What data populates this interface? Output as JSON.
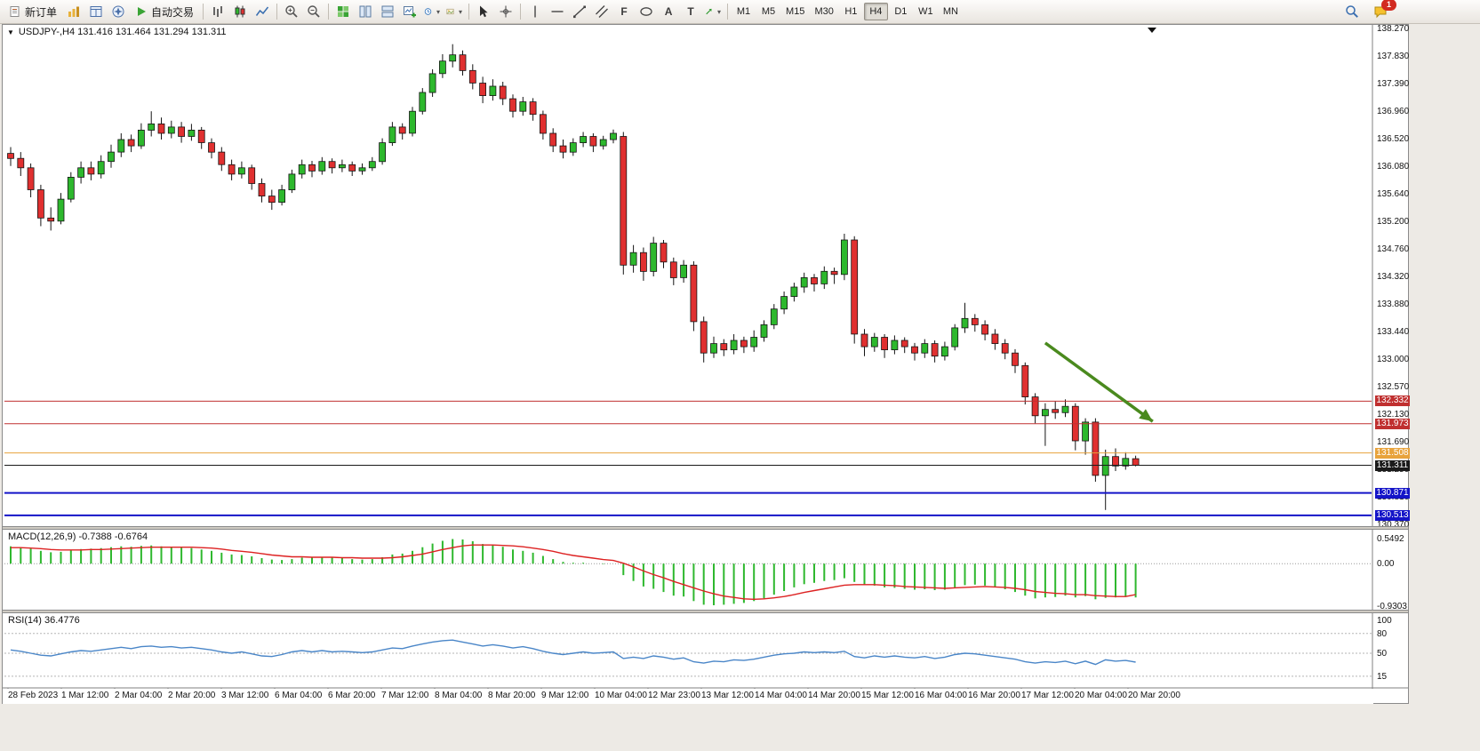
{
  "toolbar": {
    "new_order_label": "新订单",
    "auto_trading_label": "自动交易",
    "timeframes": [
      "M1",
      "M5",
      "M15",
      "M30",
      "H1",
      "H4",
      "D1",
      "W1",
      "MN"
    ],
    "active_timeframe": "H4",
    "notification_count": "1",
    "icons": [
      "market-watch-icon",
      "data-window-icon",
      "navigator-icon",
      "auto-trading-icon",
      "bar-chart-icon",
      "candlestick-chart-icon",
      "line-chart-icon",
      "zoom-in-icon",
      "zoom-out-icon",
      "tile-windows-icon",
      "arrange-columns-icon",
      "arrange-rows-icon",
      "new-chart-icon",
      "period-clock-icon",
      "template-icon",
      "cursor-icon",
      "crosshair-icon",
      "vertical-line-icon",
      "horizontal-line-icon",
      "trendline-icon",
      "channel-icon",
      "fibonacci-icon",
      "shapes-icon",
      "text-icon",
      "label-icon",
      "arrows-tool-icon",
      "search-icon",
      "notifications-icon"
    ]
  },
  "chart_data": {
    "type": "candlestick",
    "symbol": "USDJPY-",
    "timeframe": "H4",
    "symbol_header": "USDJPY-,H4 131.416 131.464 131.294 131.311",
    "ohlc_current": {
      "open": 131.416,
      "high": 131.464,
      "low": 131.294,
      "close": 131.311
    },
    "price_max": 138.27,
    "price_min": 130.37,
    "price_axis_labels": [
      "138.270",
      "137.830",
      "137.390",
      "136.960",
      "136.520",
      "136.080",
      "135.640",
      "135.200",
      "134.760",
      "134.320",
      "133.880",
      "133.440",
      "133.000",
      "132.570",
      "132.130",
      "131.690",
      "131.250",
      "130.810",
      "130.370"
    ],
    "levels": [
      {
        "price": 132.332,
        "label": "132.332",
        "color": "#c03030",
        "width": 1
      },
      {
        "price": 131.973,
        "label": "131.973",
        "color": "#c03030",
        "width": 1
      },
      {
        "price": 131.508,
        "label": "131.508",
        "color": "#e8a33c",
        "width": 1
      },
      {
        "price": 131.311,
        "label": "131.311",
        "color": "#1a1a1a",
        "width": 1
      },
      {
        "price": 130.871,
        "label": "130.871",
        "color": "#1414c8",
        "width": 2
      },
      {
        "price": 130.513,
        "label": "130.513",
        "color": "#1414c8",
        "width": 2
      }
    ],
    "annotation_arrow": {
      "from_index": 103,
      "from_price": 133.26,
      "to_index": 113.7,
      "to_price": 132.01,
      "color": "#4a8a1e"
    },
    "colors": {
      "up": "#2db82d",
      "down": "#e03030",
      "outline": "#141414",
      "macd_histogram": "#2eb82e",
      "macd_signal": "#dd2222",
      "rsi_line": "#4a86c8"
    },
    "candles": [
      [
        136.28,
        136.38,
        136.08,
        136.2
      ],
      [
        136.2,
        136.3,
        135.92,
        136.05
      ],
      [
        136.05,
        136.12,
        135.58,
        135.7
      ],
      [
        135.7,
        135.78,
        135.12,
        135.25
      ],
      [
        135.25,
        135.42,
        135.05,
        135.2
      ],
      [
        135.2,
        135.65,
        135.15,
        135.55
      ],
      [
        135.55,
        135.98,
        135.5,
        135.9
      ],
      [
        135.9,
        136.15,
        135.8,
        136.05
      ],
      [
        136.05,
        136.15,
        135.85,
        135.95
      ],
      [
        135.95,
        136.25,
        135.88,
        136.15
      ],
      [
        136.15,
        136.42,
        136.05,
        136.3
      ],
      [
        136.3,
        136.6,
        136.22,
        136.5
      ],
      [
        136.5,
        136.58,
        136.3,
        136.4
      ],
      [
        136.4,
        136.76,
        136.35,
        136.65
      ],
      [
        136.65,
        136.95,
        136.55,
        136.75
      ],
      [
        136.75,
        136.85,
        136.5,
        136.6
      ],
      [
        136.6,
        136.8,
        136.52,
        136.7
      ],
      [
        136.7,
        136.78,
        136.45,
        136.55
      ],
      [
        136.55,
        136.75,
        136.48,
        136.65
      ],
      [
        136.65,
        136.7,
        136.35,
        136.45
      ],
      [
        136.45,
        136.52,
        136.2,
        136.3
      ],
      [
        136.3,
        136.38,
        136.0,
        136.1
      ],
      [
        136.1,
        136.18,
        135.85,
        135.95
      ],
      [
        135.95,
        136.15,
        135.88,
        136.05
      ],
      [
        136.05,
        136.1,
        135.7,
        135.8
      ],
      [
        135.8,
        135.88,
        135.5,
        135.6
      ],
      [
        135.6,
        135.7,
        135.38,
        135.5
      ],
      [
        135.5,
        135.78,
        135.45,
        135.7
      ],
      [
        135.7,
        136.02,
        135.65,
        135.95
      ],
      [
        135.95,
        136.18,
        135.88,
        136.1
      ],
      [
        136.1,
        136.16,
        135.9,
        136.0
      ],
      [
        136.0,
        136.22,
        135.94,
        136.15
      ],
      [
        136.15,
        136.2,
        135.96,
        136.05
      ],
      [
        136.05,
        136.18,
        135.98,
        136.1
      ],
      [
        136.1,
        136.15,
        135.92,
        136.0
      ],
      [
        136.0,
        136.12,
        135.94,
        136.05
      ],
      [
        136.05,
        136.22,
        136.0,
        136.15
      ],
      [
        136.15,
        136.52,
        136.1,
        136.45
      ],
      [
        136.45,
        136.78,
        136.4,
        136.7
      ],
      [
        136.7,
        136.76,
        136.5,
        136.6
      ],
      [
        136.6,
        137.02,
        136.55,
        136.95
      ],
      [
        136.95,
        137.32,
        136.9,
        137.25
      ],
      [
        137.25,
        137.62,
        137.18,
        137.55
      ],
      [
        137.55,
        137.86,
        137.48,
        137.75
      ],
      [
        137.75,
        138.02,
        137.65,
        137.85
      ],
      [
        137.85,
        137.92,
        137.52,
        137.6
      ],
      [
        137.6,
        137.7,
        137.3,
        137.4
      ],
      [
        137.4,
        137.5,
        137.08,
        137.2
      ],
      [
        137.2,
        137.46,
        137.12,
        137.35
      ],
      [
        137.35,
        137.42,
        137.05,
        137.15
      ],
      [
        137.15,
        137.22,
        136.85,
        136.95
      ],
      [
        136.95,
        137.18,
        136.88,
        137.1
      ],
      [
        137.1,
        137.16,
        136.8,
        136.9
      ],
      [
        136.9,
        136.96,
        136.5,
        136.6
      ],
      [
        136.6,
        136.68,
        136.3,
        136.4
      ],
      [
        136.4,
        136.5,
        136.2,
        136.3
      ],
      [
        136.3,
        136.52,
        136.24,
        136.45
      ],
      [
        136.45,
        136.62,
        136.38,
        136.55
      ],
      [
        136.55,
        136.6,
        136.3,
        136.4
      ],
      [
        136.4,
        136.56,
        136.34,
        136.5
      ],
      [
        136.5,
        136.66,
        136.44,
        136.6
      ],
      [
        136.55,
        136.62,
        134.35,
        134.5
      ],
      [
        134.5,
        134.82,
        134.38,
        134.7
      ],
      [
        134.7,
        134.78,
        134.25,
        134.4
      ],
      [
        134.4,
        134.95,
        134.32,
        134.85
      ],
      [
        134.85,
        134.9,
        134.45,
        134.55
      ],
      [
        134.55,
        134.62,
        134.18,
        134.3
      ],
      [
        134.3,
        134.58,
        134.22,
        134.5
      ],
      [
        134.5,
        134.56,
        133.45,
        133.6
      ],
      [
        133.6,
        133.68,
        132.95,
        133.1
      ],
      [
        133.1,
        133.36,
        133.02,
        133.25
      ],
      [
        133.25,
        133.32,
        133.05,
        133.15
      ],
      [
        133.15,
        133.4,
        133.08,
        133.3
      ],
      [
        133.3,
        133.36,
        133.1,
        133.2
      ],
      [
        133.2,
        133.46,
        133.12,
        133.35
      ],
      [
        133.35,
        133.62,
        133.28,
        133.55
      ],
      [
        133.55,
        133.88,
        133.48,
        133.8
      ],
      [
        133.8,
        134.08,
        133.72,
        134.0
      ],
      [
        134.0,
        134.22,
        133.92,
        134.15
      ],
      [
        134.15,
        134.38,
        134.06,
        134.3
      ],
      [
        134.3,
        134.36,
        134.08,
        134.2
      ],
      [
        134.2,
        134.48,
        134.12,
        134.4
      ],
      [
        134.4,
        134.46,
        134.2,
        134.35
      ],
      [
        134.35,
        135.0,
        134.26,
        134.9
      ],
      [
        134.9,
        134.96,
        133.25,
        133.4
      ],
      [
        133.4,
        133.48,
        133.05,
        133.2
      ],
      [
        133.2,
        133.42,
        133.12,
        133.35
      ],
      [
        133.35,
        133.4,
        133.02,
        133.15
      ],
      [
        133.15,
        133.38,
        133.08,
        133.3
      ],
      [
        133.3,
        133.35,
        133.1,
        133.2
      ],
      [
        133.2,
        133.26,
        132.98,
        133.1
      ],
      [
        133.1,
        133.32,
        133.02,
        133.25
      ],
      [
        133.25,
        133.3,
        132.95,
        133.05
      ],
      [
        133.05,
        133.28,
        132.98,
        133.2
      ],
      [
        133.2,
        133.56,
        133.14,
        133.5
      ],
      [
        133.5,
        133.9,
        133.42,
        133.65
      ],
      [
        133.65,
        133.72,
        133.44,
        133.55
      ],
      [
        133.55,
        133.62,
        133.3,
        133.4
      ],
      [
        133.4,
        133.48,
        133.15,
        133.25
      ],
      [
        133.25,
        133.32,
        133.0,
        133.1
      ],
      [
        133.1,
        133.16,
        132.78,
        132.9
      ],
      [
        132.9,
        132.95,
        132.28,
        132.4
      ],
      [
        132.4,
        132.46,
        131.98,
        132.1
      ],
      [
        132.1,
        132.3,
        131.62,
        132.2
      ],
      [
        132.2,
        132.33,
        132.05,
        132.15
      ],
      [
        132.15,
        132.36,
        132.08,
        132.25
      ],
      [
        132.25,
        132.3,
        131.55,
        131.7
      ],
      [
        131.7,
        132.06,
        131.48,
        132.0
      ],
      [
        132.0,
        132.06,
        131.05,
        131.15
      ],
      [
        131.15,
        131.56,
        130.6,
        131.45
      ],
      [
        131.45,
        131.58,
        131.22,
        131.3
      ],
      [
        131.3,
        131.52,
        131.24,
        131.42
      ],
      [
        131.416,
        131.464,
        131.294,
        131.311
      ]
    ],
    "macd": {
      "label": "MACD(12,26,9) -0.7388 -0.6764",
      "name": "MACD",
      "params": "12,26,9",
      "value": -0.7388,
      "signal_value": -0.6764,
      "axis_labels": [
        "0.5492",
        "0.00",
        "-0.9303"
      ],
      "scale_max": 0.5492,
      "scale_min": -0.9303,
      "histogram": [
        0.38,
        0.36,
        0.33,
        0.28,
        0.25,
        0.26,
        0.29,
        0.32,
        0.33,
        0.34,
        0.36,
        0.38,
        0.37,
        0.39,
        0.4,
        0.38,
        0.37,
        0.35,
        0.34,
        0.31,
        0.28,
        0.24,
        0.2,
        0.19,
        0.16,
        0.12,
        0.09,
        0.08,
        0.1,
        0.13,
        0.13,
        0.14,
        0.13,
        0.12,
        0.1,
        0.09,
        0.1,
        0.14,
        0.2,
        0.22,
        0.28,
        0.36,
        0.44,
        0.5,
        0.54,
        0.53,
        0.49,
        0.43,
        0.41,
        0.37,
        0.31,
        0.28,
        0.24,
        0.17,
        0.1,
        0.04,
        0.02,
        0.02,
        0.0,
        -0.01,
        0.0,
        -0.25,
        -0.38,
        -0.5,
        -0.55,
        -0.62,
        -0.7,
        -0.72,
        -0.82,
        -0.9,
        -0.91,
        -0.9,
        -0.88,
        -0.86,
        -0.82,
        -0.76,
        -0.68,
        -0.6,
        -0.52,
        -0.45,
        -0.42,
        -0.38,
        -0.36,
        -0.32,
        -0.4,
        -0.46,
        -0.48,
        -0.52,
        -0.53,
        -0.55,
        -0.57,
        -0.56,
        -0.58,
        -0.57,
        -0.52,
        -0.47,
        -0.46,
        -0.48,
        -0.52,
        -0.56,
        -0.62,
        -0.7,
        -0.76,
        -0.74,
        -0.73,
        -0.7,
        -0.74,
        -0.71,
        -0.78,
        -0.75,
        -0.74,
        -0.73,
        -0.7388
      ],
      "signal": [
        0.35,
        0.35,
        0.34,
        0.33,
        0.31,
        0.3,
        0.3,
        0.3,
        0.31,
        0.31,
        0.32,
        0.33,
        0.34,
        0.35,
        0.36,
        0.36,
        0.36,
        0.36,
        0.36,
        0.35,
        0.34,
        0.32,
        0.29,
        0.27,
        0.25,
        0.22,
        0.19,
        0.17,
        0.15,
        0.15,
        0.14,
        0.14,
        0.14,
        0.13,
        0.13,
        0.12,
        0.12,
        0.12,
        0.13,
        0.15,
        0.18,
        0.21,
        0.26,
        0.31,
        0.35,
        0.39,
        0.41,
        0.41,
        0.41,
        0.4,
        0.39,
        0.37,
        0.34,
        0.31,
        0.27,
        0.22,
        0.18,
        0.15,
        0.12,
        0.09,
        0.07,
        0.01,
        -0.07,
        -0.16,
        -0.24,
        -0.31,
        -0.39,
        -0.46,
        -0.53,
        -0.6,
        -0.66,
        -0.71,
        -0.74,
        -0.77,
        -0.78,
        -0.77,
        -0.75,
        -0.72,
        -0.68,
        -0.63,
        -0.59,
        -0.55,
        -0.51,
        -0.47,
        -0.46,
        -0.46,
        -0.46,
        -0.47,
        -0.48,
        -0.5,
        -0.51,
        -0.52,
        -0.53,
        -0.54,
        -0.53,
        -0.52,
        -0.51,
        -0.5,
        -0.51,
        -0.52,
        -0.54,
        -0.57,
        -0.61,
        -0.63,
        -0.65,
        -0.66,
        -0.68,
        -0.68,
        -0.7,
        -0.71,
        -0.72,
        -0.72,
        -0.6764
      ]
    },
    "rsi": {
      "label": "RSI(14) 36.4776",
      "value": 36.4776,
      "axis_labels": [
        "100",
        "80",
        "50",
        "15"
      ],
      "level_lines": [
        80,
        50,
        15
      ],
      "values": [
        55,
        53,
        50,
        47,
        46,
        49,
        52,
        54,
        53,
        55,
        57,
        59,
        57,
        60,
        61,
        59,
        60,
        58,
        59,
        57,
        55,
        52,
        50,
        52,
        49,
        46,
        45,
        48,
        52,
        54,
        52,
        54,
        52,
        53,
        52,
        51,
        52,
        55,
        58,
        57,
        61,
        64,
        67,
        69,
        70,
        67,
        64,
        61,
        63,
        61,
        58,
        60,
        57,
        53,
        50,
        48,
        50,
        52,
        50,
        51,
        52,
        42,
        44,
        42,
        46,
        44,
        41,
        43,
        37,
        35,
        38,
        37,
        40,
        39,
        41,
        44,
        47,
        49,
        50,
        52,
        51,
        52,
        51,
        53,
        45,
        43,
        46,
        44,
        46,
        44,
        43,
        45,
        42,
        44,
        48,
        50,
        49,
        47,
        45,
        43,
        41,
        37,
        35,
        37,
        36,
        38,
        34,
        38,
        33,
        40,
        38,
        39,
        36.4776
      ]
    },
    "time_axis_labels": [
      "28 Feb 2023",
      "1 Mar 12:00",
      "2 Mar 04:00",
      "2 Mar 20:00",
      "3 Mar 12:00",
      "6 Mar 04:00",
      "6 Mar 20:00",
      "7 Mar 12:00",
      "8 Mar 04:00",
      "8 Mar 20:00",
      "9 Mar 12:00",
      "10 Mar 04:00",
      "12 Mar 23:00",
      "13 Mar 12:00",
      "14 Mar 04:00",
      "14 Mar 20:00",
      "15 Mar 12:00",
      "16 Mar 04:00",
      "16 Mar 20:00",
      "17 Mar 12:00",
      "20 Mar 04:00",
      "20 Mar 20:00"
    ]
  }
}
